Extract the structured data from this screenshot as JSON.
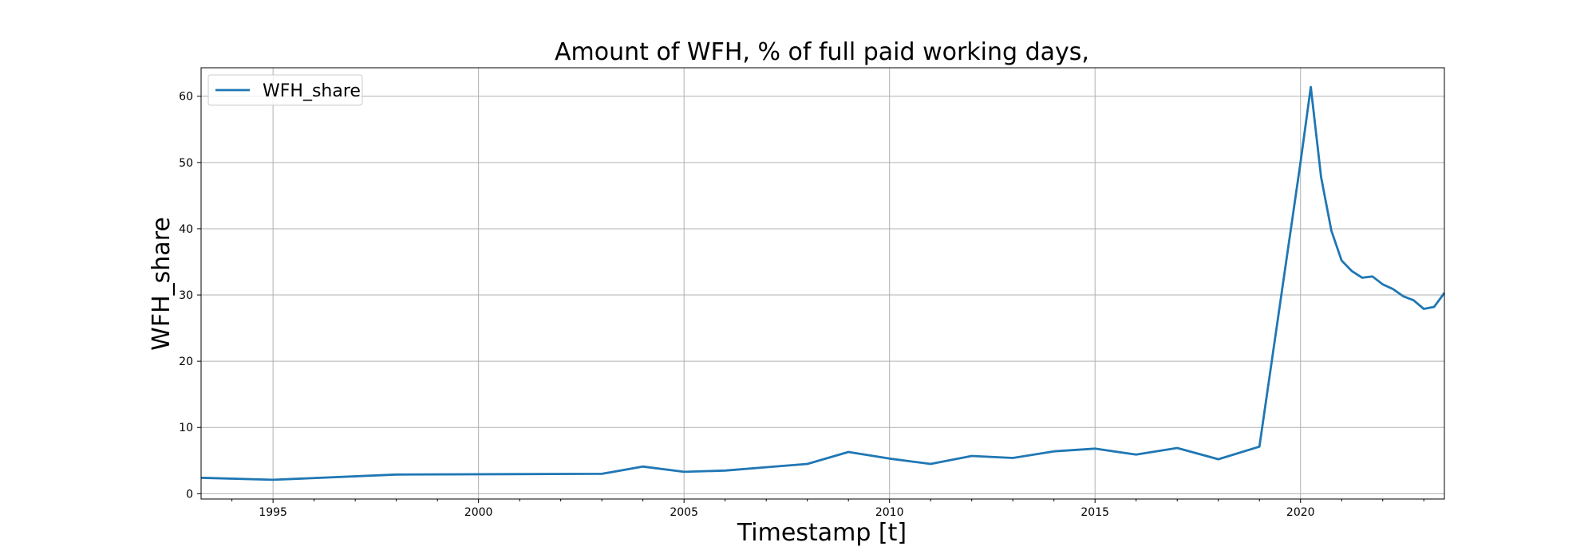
{
  "chart_data": {
    "type": "line",
    "title": "Amount of WFH, % of full paid working days,",
    "xlabel": "Timestamp [t]",
    "ylabel": "WFH_share",
    "xlim": [
      1993.25,
      2023.5
    ],
    "ylim": [
      -0.8,
      64.3
    ],
    "x_ticks": [
      1995,
      2000,
      2005,
      2010,
      2015,
      2020
    ],
    "x_minor_ticks": [
      1994,
      1996,
      1997,
      1998,
      1999,
      2001,
      2002,
      2003,
      2004,
      2006,
      2007,
      2008,
      2009,
      2011,
      2012,
      2013,
      2014,
      2016,
      2017,
      2018,
      2019,
      2021,
      2022,
      2023
    ],
    "y_ticks": [
      0,
      10,
      20,
      30,
      40,
      50,
      60
    ],
    "grid": true,
    "legend": {
      "position": "top-left",
      "entries": [
        "WFH_share"
      ]
    },
    "colors": {
      "series": "#1f77b4",
      "grid": "#b0b0b0"
    },
    "series": [
      {
        "name": "WFH_share",
        "x": [
          1993.25,
          1995.0,
          1998.0,
          2003.0,
          2004.0,
          2005.0,
          2006.0,
          2007.0,
          2008.0,
          2009.0,
          2010.0,
          2011.0,
          2012.0,
          2013.0,
          2014.0,
          2015.0,
          2016.0,
          2017.0,
          2018.0,
          2019.0,
          2020.0,
          2020.25,
          2020.5,
          2020.75,
          2021.0,
          2021.25,
          2021.5,
          2021.75,
          2022.0,
          2022.25,
          2022.5,
          2022.75,
          2023.0,
          2023.25,
          2023.5
        ],
        "values": [
          2.4,
          2.1,
          2.9,
          3.0,
          4.1,
          3.3,
          3.5,
          4.0,
          4.5,
          6.3,
          5.3,
          4.5,
          5.7,
          5.4,
          6.4,
          6.8,
          5.9,
          6.9,
          5.2,
          7.1,
          50.0,
          61.4,
          47.8,
          39.7,
          35.2,
          33.6,
          32.6,
          32.8,
          31.6,
          30.9,
          29.8,
          29.2,
          27.9,
          28.2,
          30.3
        ]
      }
    ]
  }
}
